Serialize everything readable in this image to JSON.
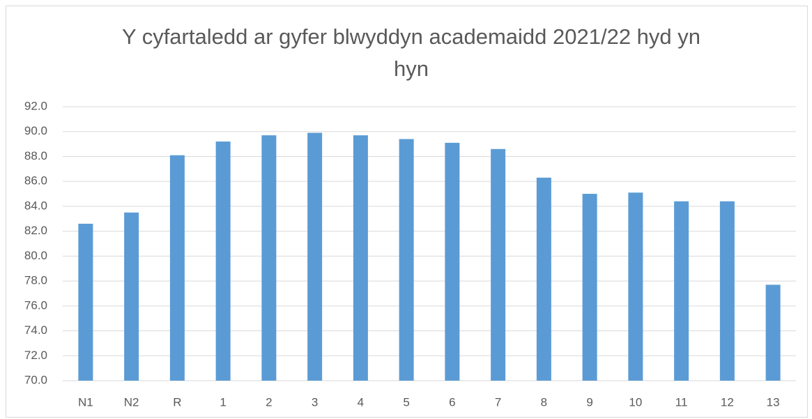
{
  "chart_data": {
    "type": "bar",
    "title": "Y cyfartaledd ar gyfer blwyddyn academaidd 2021/22 hyd yn hyn",
    "categories": [
      "N1",
      "N2",
      "R",
      "1",
      "2",
      "3",
      "4",
      "5",
      "6",
      "7",
      "8",
      "9",
      "10",
      "11",
      "12",
      "13"
    ],
    "values": [
      82.6,
      83.5,
      88.1,
      89.2,
      89.7,
      89.9,
      89.7,
      89.4,
      89.1,
      88.6,
      86.3,
      85.0,
      85.1,
      84.4,
      84.4,
      77.7
    ],
    "color": "#5b9bd5",
    "ylim": [
      70,
      92
    ],
    "yticks": [
      {
        "value": 70,
        "label": "70.0"
      },
      {
        "value": 72,
        "label": "72.0"
      },
      {
        "value": 74,
        "label": "74.0"
      },
      {
        "value": 76,
        "label": "76.0"
      },
      {
        "value": 78,
        "label": "78.0"
      },
      {
        "value": 80,
        "label": "80.0"
      },
      {
        "value": 82,
        "label": "82.0"
      },
      {
        "value": 84,
        "label": "84.0"
      },
      {
        "value": 86,
        "label": "86.0"
      },
      {
        "value": 88,
        "label": "88.0"
      },
      {
        "value": 90,
        "label": "90.0"
      },
      {
        "value": 92,
        "label": "92.0"
      }
    ],
    "grid": true
  }
}
